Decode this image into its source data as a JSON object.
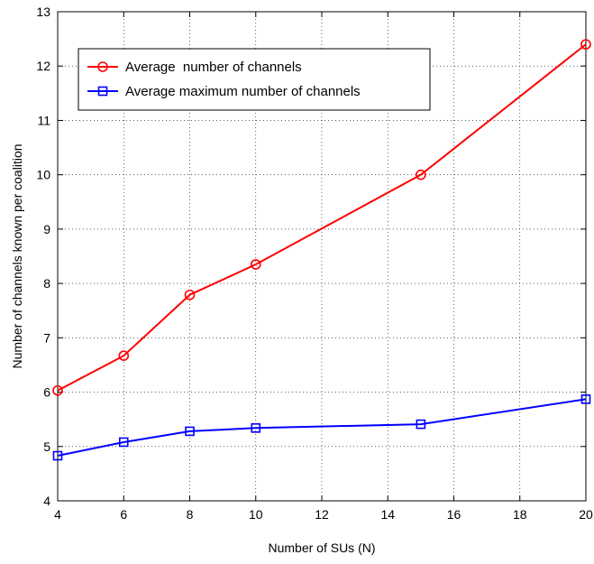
{
  "chart_data": {
    "type": "line",
    "title": "",
    "xlabel": "Number of SUs (N)",
    "ylabel": "Number of channels known per coalition",
    "xlim": [
      4,
      20
    ],
    "ylim": [
      4,
      13
    ],
    "xticks": [
      4,
      6,
      8,
      10,
      12,
      14,
      16,
      18,
      20
    ],
    "yticks": [
      4,
      5,
      6,
      7,
      8,
      9,
      10,
      11,
      12,
      13
    ],
    "grid": true,
    "legend_position": "top-left",
    "series": [
      {
        "name": "Average  number of channels",
        "color": "#ff0000",
        "marker": "circle",
        "x": [
          4,
          6,
          8,
          10,
          15,
          20
        ],
        "y": [
          6.03,
          6.67,
          7.79,
          8.35,
          10.0,
          12.4
        ]
      },
      {
        "name": "Average maximum number of channels",
        "color": "#0000ff",
        "marker": "square",
        "x": [
          4,
          6,
          8,
          10,
          15,
          20
        ],
        "y": [
          4.83,
          5.08,
          5.28,
          5.34,
          5.41,
          5.87
        ]
      }
    ]
  }
}
